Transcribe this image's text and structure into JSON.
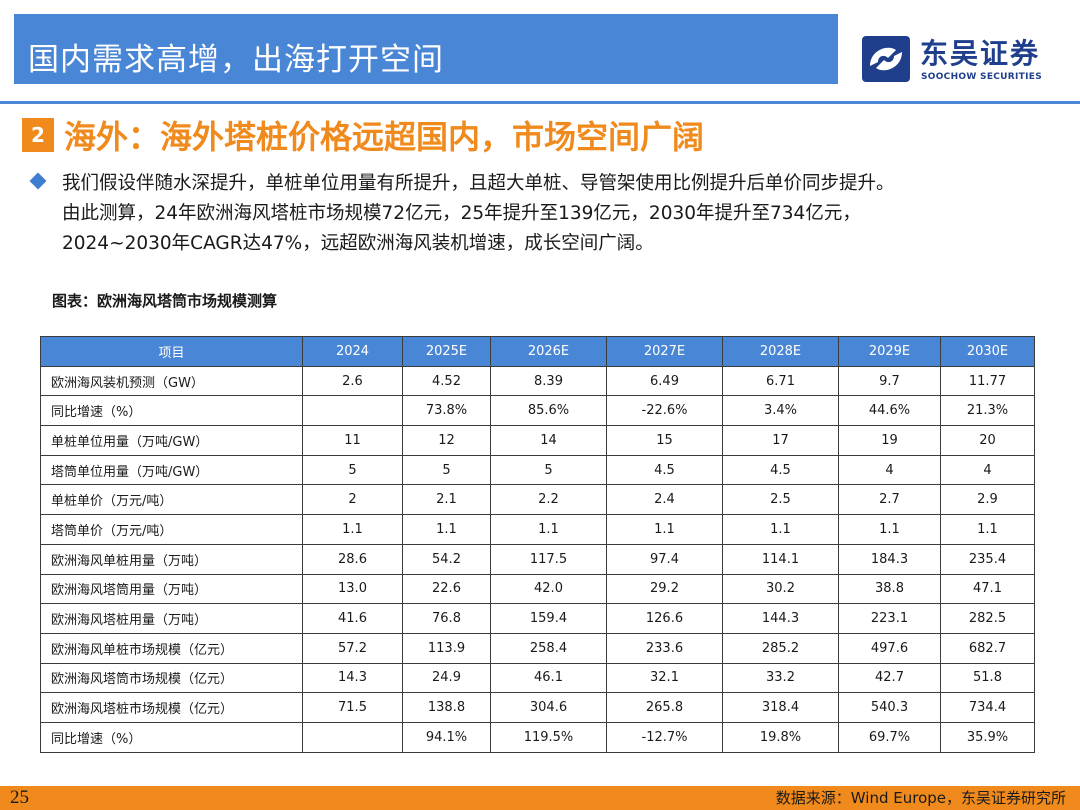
{
  "header": {
    "title": "国内需求高增，出海打开空间",
    "logo_cn": "东吴证券",
    "logo_en": "SOOCHOW SECURITIES",
    "brand_color": "#4a86d6",
    "accent_color": "#f08a1c"
  },
  "section": {
    "number": "2",
    "title": "海外：海外塔桩价格远超国内，市场空间广阔"
  },
  "bullet": {
    "lines": [
      "我们假设伴随水深提升，单桩单位用量有所提升，且超大单桩、导管架使用比例提升后单价同步提升。",
      "由此测算，24年欧洲海风塔桩市场规模72亿元，25年提升至139亿元，2030年提升至734亿元，",
      "2024~2030年CAGR达47%，远超欧洲海风装机增速，成长空间广阔。"
    ]
  },
  "chart_data": {
    "type": "table",
    "title": "图表：欧洲海风塔筒市场规模测算",
    "columns": [
      "项目",
      "2024",
      "2025E",
      "2026E",
      "2027E",
      "2028E",
      "2029E",
      "2030E"
    ],
    "rows": [
      [
        "欧洲海风装机预测（GW）",
        "2.6",
        "4.52",
        "8.39",
        "6.49",
        "6.71",
        "9.7",
        "11.77"
      ],
      [
        "同比增速（%）",
        "",
        "73.8%",
        "85.6%",
        "-22.6%",
        "3.4%",
        "44.6%",
        "21.3%"
      ],
      [
        "单桩单位用量（万吨/GW）",
        "11",
        "12",
        "14",
        "15",
        "17",
        "19",
        "20"
      ],
      [
        "塔筒单位用量（万吨/GW）",
        "5",
        "5",
        "5",
        "4.5",
        "4.5",
        "4",
        "4"
      ],
      [
        "单桩单价（万元/吨）",
        "2",
        "2.1",
        "2.2",
        "2.4",
        "2.5",
        "2.7",
        "2.9"
      ],
      [
        "塔筒单价（万元/吨）",
        "1.1",
        "1.1",
        "1.1",
        "1.1",
        "1.1",
        "1.1",
        "1.1"
      ],
      [
        "欧洲海风单桩用量（万吨）",
        "28.6",
        "54.2",
        "117.5",
        "97.4",
        "114.1",
        "184.3",
        "235.4"
      ],
      [
        "欧洲海风塔筒用量（万吨）",
        "13.0",
        "22.6",
        "42.0",
        "29.2",
        "30.2",
        "38.8",
        "47.1"
      ],
      [
        "欧洲海风塔桩用量（万吨）",
        "41.6",
        "76.8",
        "159.4",
        "126.6",
        "144.3",
        "223.1",
        "282.5"
      ],
      [
        "欧洲海风单桩市场规模（亿元）",
        "57.2",
        "113.9",
        "258.4",
        "233.6",
        "285.2",
        "497.6",
        "682.7"
      ],
      [
        "欧洲海风塔筒市场规模（亿元）",
        "14.3",
        "24.9",
        "46.1",
        "32.1",
        "33.2",
        "42.7",
        "51.8"
      ],
      [
        "欧洲海风塔桩市场规模（亿元）",
        "71.5",
        "138.8",
        "304.6",
        "265.8",
        "318.4",
        "540.3",
        "734.4"
      ],
      [
        "同比增速（%）",
        "",
        "94.1%",
        "119.5%",
        "-12.7%",
        "19.8%",
        "69.7%",
        "35.9%"
      ]
    ]
  },
  "footer": {
    "page_number": "25",
    "source": "数据来源：Wind Europe，东吴证券研究所"
  }
}
